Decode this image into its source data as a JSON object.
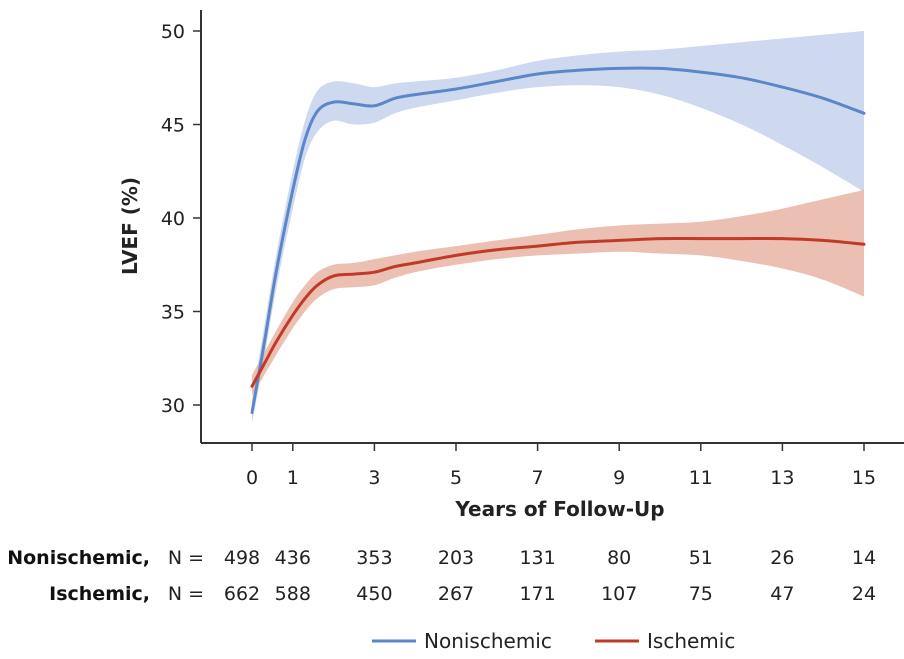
{
  "chart_data": {
    "type": "line",
    "xlabel": "Years of Follow-Up",
    "ylabel": "LVEF (%)",
    "xlim": [
      -1.2,
      16
    ],
    "ylim": [
      28,
      51
    ],
    "x_ticks": [
      0,
      1,
      3,
      5,
      7,
      9,
      11,
      13,
      15
    ],
    "y_ticks": [
      30,
      35,
      40,
      45,
      50
    ],
    "legend_position": "bottom-center",
    "series": [
      {
        "name": "Nonischemic",
        "color": "#5b87c9",
        "band_color": "#c6d2ec",
        "x": [
          0,
          0.3,
          0.6,
          1,
          1.3,
          1.6,
          2,
          2.5,
          3,
          3.5,
          4,
          5,
          6,
          7,
          8,
          9,
          10,
          11,
          12,
          13,
          14,
          15
        ],
        "y": [
          29.6,
          33.3,
          37.2,
          41.5,
          44.2,
          45.7,
          46.2,
          46.1,
          46.0,
          46.4,
          46.6,
          46.9,
          47.3,
          47.7,
          47.9,
          48.0,
          48.0,
          47.8,
          47.5,
          47.0,
          46.4,
          45.6
        ],
        "lower": [
          29.0,
          32.5,
          36.3,
          40.5,
          43.2,
          44.6,
          45.2,
          45.0,
          45.1,
          45.6,
          45.9,
          46.3,
          46.7,
          47.0,
          47.1,
          47.0,
          46.6,
          45.9,
          45.0,
          43.9,
          42.7,
          41.4
        ],
        "upper": [
          30.3,
          34.2,
          38.1,
          42.5,
          45.2,
          46.8,
          47.3,
          47.2,
          47.0,
          47.2,
          47.3,
          47.5,
          47.9,
          48.4,
          48.7,
          48.9,
          49.0,
          49.2,
          49.4,
          49.6,
          49.8,
          50.0
        ]
      },
      {
        "name": "Ischemic",
        "color": "#c03a28",
        "band_color": "#e8b4a3",
        "x": [
          0,
          0.3,
          0.6,
          1,
          1.3,
          1.6,
          2,
          2.5,
          3,
          3.5,
          4,
          5,
          6,
          7,
          8,
          9,
          10,
          11,
          12,
          13,
          14,
          15
        ],
        "y": [
          31.0,
          32.2,
          33.4,
          34.8,
          35.7,
          36.4,
          36.9,
          37.0,
          37.1,
          37.4,
          37.6,
          38.0,
          38.3,
          38.5,
          38.7,
          38.8,
          38.9,
          38.9,
          38.9,
          38.9,
          38.8,
          38.6
        ],
        "lower": [
          30.5,
          31.6,
          32.7,
          34.1,
          35.0,
          35.7,
          36.2,
          36.3,
          36.4,
          36.8,
          37.1,
          37.5,
          37.8,
          38.0,
          38.1,
          38.2,
          38.1,
          38.0,
          37.7,
          37.3,
          36.7,
          35.8
        ],
        "upper": [
          31.6,
          32.8,
          34.0,
          35.5,
          36.4,
          37.1,
          37.5,
          37.6,
          37.8,
          38.0,
          38.2,
          38.5,
          38.8,
          39.1,
          39.4,
          39.6,
          39.7,
          39.8,
          40.1,
          40.5,
          41.0,
          41.5
        ]
      }
    ],
    "number_at_risk": {
      "x": [
        0,
        1,
        3,
        5,
        7,
        9,
        11,
        13,
        15
      ],
      "rows": [
        {
          "label": "Nonischemic,",
          "prefix": "N =",
          "values": [
            498,
            436,
            353,
            203,
            131,
            80,
            51,
            26,
            14
          ]
        },
        {
          "label": "Ischemic,",
          "prefix": "N =",
          "values": [
            662,
            588,
            450,
            267,
            171,
            107,
            75,
            47,
            24
          ]
        }
      ]
    }
  }
}
